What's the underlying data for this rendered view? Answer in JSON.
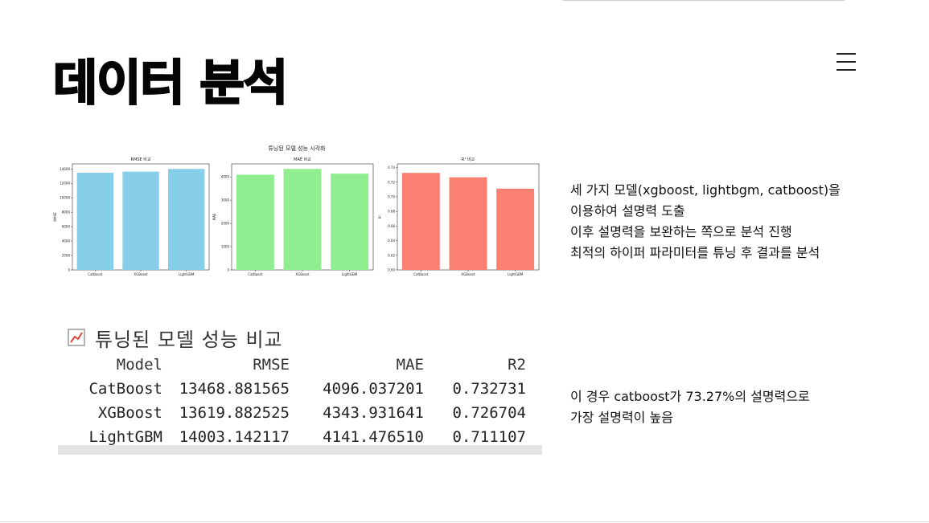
{
  "page": {
    "title": "데이터 분석"
  },
  "menu": {
    "icon": "hamburger-menu-icon"
  },
  "visualization": {
    "suptitle": "튜닝된 모델 성능 시각화",
    "chart_data": [
      {
        "type": "bar",
        "title": "RMSE 비교",
        "xlabel": "",
        "ylabel": "RMSE",
        "categories": [
          "CatBoost",
          "XGBoost",
          "LightGBM"
        ],
        "values": [
          13468.881565,
          13619.882525,
          14003.142117
        ],
        "ylim": [
          0,
          14700
        ],
        "yticks": [
          0,
          2000,
          4000,
          6000,
          8000,
          10000,
          12000,
          14000
        ],
        "color": "#87CEEB",
        "grid": false
      },
      {
        "type": "bar",
        "title": "MAE 비교",
        "xlabel": "",
        "ylabel": "MAE",
        "categories": [
          "CatBoost",
          "XGBoost",
          "LightGBM"
        ],
        "values": [
          4096.037201,
          4343.931641,
          4141.47651
        ],
        "ylim": [
          0,
          4560
        ],
        "yticks": [
          0,
          1000,
          2000,
          3000,
          4000
        ],
        "color": "#90EE90",
        "grid": false
      },
      {
        "type": "bar",
        "title": "R² 비교",
        "xlabel": "",
        "ylabel": "R²",
        "categories": [
          "CatBoost",
          "XGBoost",
          "LightGBM"
        ],
        "values": [
          0.732731,
          0.726704,
          0.711107
        ],
        "ylim": [
          0.6,
          0.745
        ],
        "yticks": [
          0.6,
          0.62,
          0.64,
          0.66,
          0.68,
          0.7,
          0.72,
          0.74
        ],
        "ytick_labels": [
          "0.60",
          "0.62",
          "0.64",
          "0.66",
          "0.68",
          "0.70",
          "0.72",
          "0.74"
        ],
        "color": "#FA8072",
        "grid": false
      }
    ]
  },
  "description1": {
    "lines": [
      "세 가지 모델(xgboost, lightbgm, catboost)을",
      "이용하여 설명력 도출",
      "이후 설명력을 보완하는 쪽으로 분석 진행",
      "최적의 하이퍼 파라미터를 튜닝 후 결과를 분석"
    ]
  },
  "results": {
    "icon": "chart-increasing-icon",
    "title": "튜닝된 모델 성능 비교",
    "columns": [
      "Model",
      "RMSE",
      "MAE",
      "R2"
    ],
    "rows": [
      [
        "CatBoost",
        "13468.881565",
        "4096.037201",
        "0.732731"
      ],
      [
        "XGBoost",
        "13619.882525",
        "4343.931641",
        "0.726704"
      ],
      [
        "LightGBM",
        "14003.142117",
        "4141.476510",
        "0.711107"
      ]
    ]
  },
  "description2": {
    "lines": [
      "이 경우 catboost가 73.27%의 설명력으로",
      "가장 설명력이 높음"
    ]
  }
}
